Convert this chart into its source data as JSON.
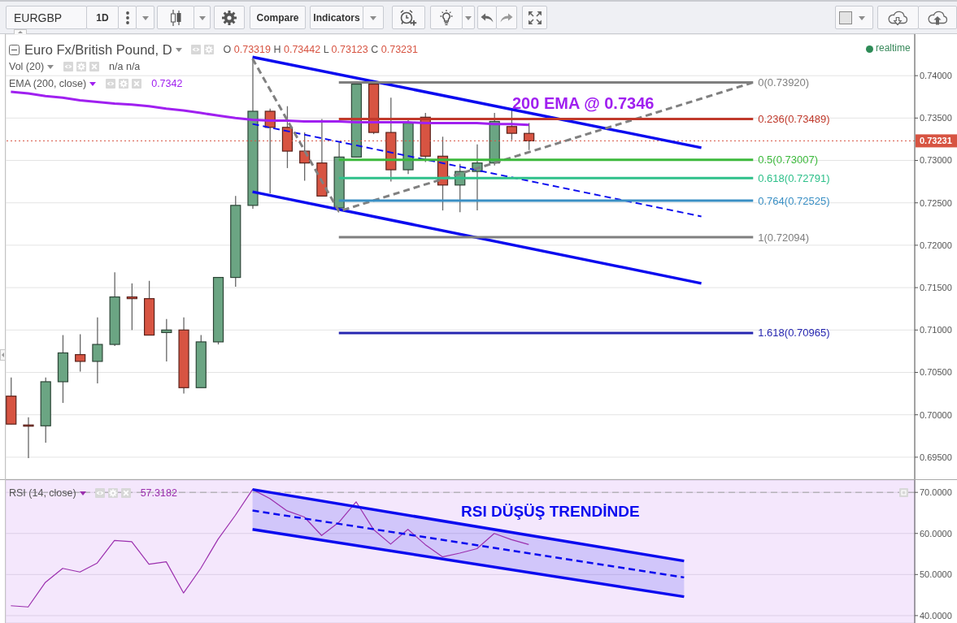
{
  "chart_data": [
    {
      "type": "other",
      "annotations": [
        "EURGBP",
        "1D",
        "Compare",
        "Indicators"
      ]
    },
    {
      "type": "candlestick",
      "title": "Euro Fx/British Pound, D",
      "categories": [
        null,
        null,
        null,
        null,
        null,
        null,
        null,
        null,
        null,
        null,
        null,
        null,
        null,
        null,
        null,
        null,
        null,
        null,
        null,
        null,
        null,
        null,
        null,
        null,
        null,
        null,
        null,
        null,
        null,
        null,
        null,
        null,
        null,
        null,
        null,
        null,
        null,
        null,
        null,
        null,
        null,
        null,
        null,
        null,
        null,
        null,
        null,
        null,
        null,
        null,
        null,
        null,
        null
      ],
      "ohlc": [
        [
          0.7022,
          0.7044,
          0.6989,
          0.6989
        ],
        [
          0.6988,
          0.6997,
          0.6949,
          0.6987
        ],
        [
          0.6987,
          0.7044,
          0.6967,
          0.7039
        ],
        [
          0.7039,
          0.7094,
          0.7014,
          0.7073
        ],
        [
          0.7071,
          0.7095,
          0.7051,
          0.7063
        ],
        [
          0.7063,
          0.7115,
          0.7037,
          0.7083
        ],
        [
          0.7083,
          0.7168,
          0.7081,
          0.7139
        ],
        [
          0.7139,
          0.7155,
          0.71,
          0.7137
        ],
        [
          0.7137,
          0.7158,
          0.7094,
          0.7094
        ],
        [
          0.7097,
          0.7113,
          0.7063,
          0.71
        ],
        [
          0.71,
          0.7115,
          0.7025,
          0.7032
        ],
        [
          0.7032,
          0.7094,
          0.7032,
          0.7086
        ],
        [
          0.7086,
          0.7162,
          0.7083,
          0.7162
        ],
        [
          0.7162,
          0.7258,
          0.7151,
          0.7247
        ],
        [
          0.7247,
          0.742,
          0.7243,
          0.7358
        ],
        [
          0.7358,
          0.7361,
          0.7261,
          0.7339
        ],
        [
          0.7339,
          0.7364,
          0.7291,
          0.7311
        ],
        [
          0.7311,
          0.7333,
          0.7276,
          0.7297
        ],
        [
          0.7297,
          0.7349,
          0.7258,
          0.7258
        ],
        [
          0.7244,
          0.7321,
          0.7242,
          0.7304
        ],
        [
          0.7304,
          0.7392,
          0.7304,
          0.739
        ],
        [
          0.739,
          0.7392,
          0.7331,
          0.7333
        ],
        [
          0.7333,
          0.7374,
          0.7275,
          0.7289
        ],
        [
          0.7289,
          0.7349,
          0.7284,
          0.7344
        ],
        [
          0.7351,
          0.7356,
          0.7298,
          0.7305
        ],
        [
          0.7305,
          0.7328,
          0.7241,
          0.7271
        ],
        [
          0.7271,
          0.7296,
          0.7239,
          0.7287
        ],
        [
          0.7287,
          0.7319,
          0.7241,
          0.7297
        ],
        [
          0.7297,
          0.7356,
          0.7294,
          0.7346
        ],
        [
          0.734,
          0.7359,
          0.7324,
          0.7332
        ],
        [
          0.73319,
          0.73442,
          0.73123,
          0.73231
        ],
        null,
        null,
        null,
        null,
        null,
        null,
        null,
        null,
        null,
        null,
        null,
        null,
        null,
        null,
        null,
        null,
        null,
        null,
        null,
        null,
        null,
        null
      ],
      "colors": [
        "#d75442",
        "#d75442",
        "#6ba583",
        "#6ba583",
        "#d75442",
        "#6ba583",
        "#6ba583",
        "#d75442",
        "#d75442",
        "#6ba583",
        "#d75442",
        "#6ba583",
        "#6ba583",
        "#6ba583",
        "#6ba583",
        "#d75442",
        "#d75442",
        "#d75442",
        "#d75442",
        "#6ba583",
        "#6ba583",
        "#d75442",
        "#d75442",
        "#6ba583",
        "#d75442",
        "#d75442",
        "#6ba583",
        "#6ba583",
        "#6ba583",
        "#d75442",
        "#d75442",
        null,
        null,
        null,
        null,
        null,
        null,
        null,
        null,
        null,
        null,
        null,
        null,
        null,
        null,
        null,
        null,
        null,
        null,
        null,
        null,
        null,
        null
      ],
      "series": [
        {
          "name": "EMA (200, close)",
          "type": "line",
          "color": "#a020f0",
          "values": [
            0.7381,
            0.7379,
            0.7376,
            0.7374,
            0.7371,
            0.7369,
            0.7367,
            0.7366,
            0.7364,
            0.7361,
            0.7359,
            0.7356,
            0.7353,
            0.735,
            0.7348,
            0.7347,
            0.7347,
            0.7346,
            0.7346,
            0.7346,
            0.7345,
            0.7345,
            0.7345,
            0.7345,
            0.7344,
            0.7344,
            0.7344,
            0.7344,
            0.7343,
            0.7343,
            0.7342,
            null,
            null,
            null,
            null,
            null,
            null,
            null,
            null,
            null,
            null,
            null,
            null,
            null,
            null,
            null,
            null,
            null,
            null,
            null,
            null,
            null,
            null
          ]
        },
        {
          "type": "line",
          "color": "#0b0bef",
          "values": [
            null,
            null,
            null,
            null,
            null,
            null,
            null,
            null,
            null,
            null,
            null,
            null,
            null,
            null,
            0.7422,
            null,
            null,
            null,
            null,
            null,
            null,
            null,
            null,
            null,
            null,
            null,
            null,
            null,
            null,
            null,
            null,
            null,
            null,
            null,
            null,
            null,
            null,
            null,
            null,
            null,
            0.7315,
            null,
            null,
            null,
            null,
            null,
            null,
            null,
            null,
            null,
            null,
            null,
            null
          ]
        },
        {
          "type": "line",
          "color": "#0b0bef",
          "values": [
            null,
            null,
            null,
            null,
            null,
            null,
            null,
            null,
            null,
            null,
            null,
            null,
            null,
            null,
            0.7263,
            null,
            null,
            null,
            null,
            null,
            null,
            null,
            null,
            null,
            null,
            null,
            null,
            null,
            null,
            null,
            null,
            null,
            null,
            null,
            null,
            null,
            null,
            null,
            null,
            null,
            0.7155,
            null,
            null,
            null,
            null,
            null,
            null,
            null,
            null,
            null,
            null,
            null,
            null
          ]
        },
        {
          "type": "line",
          "color": "#0b0bef",
          "line_style": "dashed",
          "values": [
            null,
            null,
            null,
            null,
            null,
            null,
            null,
            null,
            null,
            null,
            null,
            null,
            null,
            null,
            0.7343,
            null,
            null,
            null,
            null,
            null,
            null,
            null,
            null,
            null,
            null,
            null,
            null,
            null,
            null,
            null,
            null,
            null,
            null,
            null,
            null,
            null,
            null,
            null,
            null,
            null,
            0.7234,
            null,
            null,
            null,
            null,
            null,
            null,
            null,
            null,
            null,
            null,
            null,
            null
          ]
        },
        {
          "type": "line",
          "color": "#808080",
          "line_style": "dashed",
          "values": [
            null,
            null,
            null,
            null,
            null,
            null,
            null,
            null,
            null,
            null,
            null,
            null,
            null,
            null,
            0.742,
            null,
            null,
            null,
            null,
            0.724,
            null,
            null,
            null,
            null,
            null,
            null,
            null,
            null,
            null,
            null,
            null,
            null,
            null,
            null,
            null,
            null,
            null,
            null,
            null,
            null,
            null,
            null,
            null,
            0.7392,
            null,
            null,
            null,
            null,
            null,
            null,
            null,
            null,
            null
          ]
        },
        {
          "name": "0(0.73920)",
          "type": "line",
          "color": "#7f7f7f",
          "values": [
            null,
            null,
            null,
            null,
            null,
            null,
            null,
            null,
            null,
            null,
            null,
            null,
            null,
            null,
            null,
            null,
            null,
            null,
            null,
            0.7392,
            null,
            null,
            null,
            null,
            null,
            null,
            null,
            null,
            null,
            null,
            null,
            null,
            null,
            null,
            null,
            null,
            null,
            null,
            null,
            null,
            null,
            null,
            null,
            0.7392,
            null,
            null,
            null,
            null,
            null,
            null,
            null,
            null,
            null
          ]
        },
        {
          "name": "0.236(0.73489)",
          "type": "line",
          "color": "#c0392b",
          "values": [
            null,
            null,
            null,
            null,
            null,
            null,
            null,
            null,
            null,
            null,
            null,
            null,
            null,
            null,
            null,
            null,
            null,
            null,
            null,
            0.73489,
            null,
            null,
            null,
            null,
            null,
            null,
            null,
            null,
            null,
            null,
            null,
            null,
            null,
            null,
            null,
            null,
            null,
            null,
            null,
            null,
            null,
            null,
            null,
            0.73489,
            null,
            null,
            null,
            null,
            null,
            null,
            null,
            null,
            null
          ]
        },
        {
          "name": "0.5(0.73007)",
          "type": "line",
          "color": "#3cb93c",
          "values": [
            null,
            null,
            null,
            null,
            null,
            null,
            null,
            null,
            null,
            null,
            null,
            null,
            null,
            null,
            null,
            null,
            null,
            null,
            null,
            0.73007,
            null,
            null,
            null,
            null,
            null,
            null,
            null,
            null,
            null,
            null,
            null,
            null,
            null,
            null,
            null,
            null,
            null,
            null,
            null,
            null,
            null,
            null,
            null,
            0.73007,
            null,
            null,
            null,
            null,
            null,
            null,
            null,
            null,
            null
          ]
        },
        {
          "name": "0.618(0.72791)",
          "type": "line",
          "color": "#2ec08a",
          "values": [
            null,
            null,
            null,
            null,
            null,
            null,
            null,
            null,
            null,
            null,
            null,
            null,
            null,
            null,
            null,
            null,
            null,
            null,
            null,
            0.72791,
            null,
            null,
            null,
            null,
            null,
            null,
            null,
            null,
            null,
            null,
            null,
            null,
            null,
            null,
            null,
            null,
            null,
            null,
            null,
            null,
            null,
            null,
            null,
            0.72791,
            null,
            null,
            null,
            null,
            null,
            null,
            null,
            null,
            null
          ]
        },
        {
          "name": "0.764(0.72525)",
          "type": "line",
          "color": "#3a8fc4",
          "values": [
            null,
            null,
            null,
            null,
            null,
            null,
            null,
            null,
            null,
            null,
            null,
            null,
            null,
            null,
            null,
            null,
            null,
            null,
            null,
            0.72525,
            null,
            null,
            null,
            null,
            null,
            null,
            null,
            null,
            null,
            null,
            null,
            null,
            null,
            null,
            null,
            null,
            null,
            null,
            null,
            null,
            null,
            null,
            null,
            0.72525,
            null,
            null,
            null,
            null,
            null,
            null,
            null,
            null,
            null
          ]
        },
        {
          "name": "1(0.72094)",
          "type": "line",
          "color": "#7f7f7f",
          "values": [
            null,
            null,
            null,
            null,
            null,
            null,
            null,
            null,
            null,
            null,
            null,
            null,
            null,
            null,
            null,
            null,
            null,
            null,
            null,
            0.72094,
            null,
            null,
            null,
            null,
            null,
            null,
            null,
            null,
            null,
            null,
            null,
            null,
            null,
            null,
            null,
            null,
            null,
            null,
            null,
            null,
            null,
            null,
            null,
            0.72094,
            null,
            null,
            null,
            null,
            null,
            null,
            null,
            null,
            null
          ]
        },
        {
          "name": "1.618(0.70965)",
          "type": "line",
          "color": "#2626b0",
          "values": [
            null,
            null,
            null,
            null,
            null,
            null,
            null,
            null,
            null,
            null,
            null,
            null,
            null,
            null,
            null,
            null,
            null,
            null,
            null,
            0.70965,
            null,
            null,
            null,
            null,
            null,
            null,
            null,
            null,
            null,
            null,
            null,
            null,
            null,
            null,
            null,
            null,
            null,
            null,
            null,
            null,
            null,
            null,
            null,
            0.70965,
            null,
            null,
            null,
            null,
            null,
            null,
            null,
            null,
            null
          ]
        }
      ],
      "ylim": [
        0.6924,
        0.7449
      ],
      "yticks": [
        {
          "value": 0.695,
          "label": "0.69500"
        },
        {
          "value": 0.7,
          "label": "0.70000"
        },
        {
          "value": 0.705,
          "label": "0.70500"
        },
        {
          "value": 0.71,
          "label": "0.71000"
        },
        {
          "value": 0.715,
          "label": "0.71500"
        },
        {
          "value": 0.72,
          "label": "0.72000"
        },
        {
          "value": 0.725,
          "label": "0.72500"
        },
        {
          "value": 0.73,
          "label": "0.73000"
        },
        {
          "value": 0.735,
          "label": "0.73500"
        },
        {
          "value": 0.74,
          "label": "0.74000"
        }
      ],
      "tick_labels": "y",
      "grid": true,
      "legend": "top left",
      "ref_lines": [
        {
          "axis": "y",
          "value": 0.73231,
          "label": "0.73231",
          "color": "#d75442",
          "line_style": "dotted"
        }
      ],
      "annotations": [
        "O 0.73319 H 0.73442 L 0.73123 C 0.73231",
        "Vol (20)",
        "n/a n/a",
        "0.7342",
        "realtime",
        "200 EMA @ 0.7346"
      ]
    },
    {
      "type": "line",
      "categories": [
        null,
        null,
        null,
        null,
        null,
        null,
        null,
        null,
        null,
        null,
        null,
        null,
        null,
        null,
        null,
        null,
        null,
        null,
        null,
        null,
        null,
        null,
        null,
        null,
        null,
        null,
        null,
        null,
        null,
        null,
        null,
        null,
        null,
        null,
        null,
        null,
        null,
        null,
        null,
        null,
        null,
        null,
        null,
        null,
        null,
        null,
        null,
        null,
        null,
        null,
        null,
        null,
        null
      ],
      "series": [
        {
          "name": "RSI (14, close)",
          "color": "#9b2fae",
          "values": [
            42.4,
            42.1,
            48.1,
            51.5,
            50.6,
            52.8,
            58.3,
            58,
            52.5,
            53.1,
            45.5,
            51.5,
            58.6,
            64.4,
            70.7,
            68.5,
            65.5,
            64,
            59.5,
            62.7,
            67.7,
            61,
            57.4,
            61,
            57.3,
            54.3,
            55.2,
            56.3,
            60,
            58.5,
            57.3182,
            null,
            null,
            null,
            null,
            null,
            null,
            null,
            null,
            null,
            null,
            null,
            null,
            null,
            null,
            null,
            null,
            null,
            null,
            null,
            null,
            null,
            null
          ]
        },
        {
          "color": "#0b0bef",
          "values": [
            null,
            null,
            null,
            null,
            null,
            null,
            null,
            null,
            null,
            null,
            null,
            null,
            null,
            null,
            70.7,
            null,
            null,
            null,
            null,
            null,
            null,
            null,
            null,
            null,
            null,
            null,
            null,
            null,
            null,
            null,
            null,
            null,
            null,
            null,
            null,
            null,
            null,
            null,
            null,
            53.3,
            null,
            null,
            null,
            null,
            null,
            null,
            null,
            null,
            null,
            null,
            null,
            null,
            null
          ]
        },
        {
          "color": "#0b0bef",
          "values": [
            null,
            null,
            null,
            null,
            null,
            null,
            null,
            null,
            null,
            null,
            null,
            null,
            null,
            null,
            61,
            null,
            null,
            null,
            null,
            null,
            null,
            null,
            null,
            null,
            null,
            null,
            null,
            null,
            null,
            null,
            null,
            null,
            null,
            null,
            null,
            null,
            null,
            null,
            null,
            44.6,
            null,
            null,
            null,
            null,
            null,
            null,
            null,
            null,
            null,
            null,
            null,
            null,
            null
          ]
        },
        {
          "color": "#0b0bef",
          "line_style": "dashed",
          "values": [
            null,
            null,
            null,
            null,
            null,
            null,
            null,
            null,
            null,
            null,
            null,
            null,
            null,
            null,
            65.6,
            null,
            null,
            null,
            null,
            null,
            null,
            null,
            null,
            null,
            null,
            null,
            null,
            null,
            null,
            null,
            null,
            null,
            null,
            null,
            null,
            null,
            null,
            null,
            null,
            49.3,
            null,
            null,
            null,
            null,
            null,
            null,
            null,
            null,
            null,
            null,
            null,
            null,
            null
          ],
          "lower": [
            null,
            null,
            null,
            null,
            null,
            null,
            null,
            null,
            null,
            null,
            null,
            null,
            null,
            null,
            61,
            null,
            null,
            null,
            null,
            null,
            null,
            null,
            null,
            null,
            null,
            null,
            null,
            null,
            null,
            null,
            null,
            null,
            null,
            null,
            null,
            null,
            null,
            null,
            null,
            44.6,
            null,
            null,
            null,
            null,
            null,
            null,
            null,
            null,
            null,
            null,
            null,
            null,
            null
          ],
          "upper": [
            null,
            null,
            null,
            null,
            null,
            null,
            null,
            null,
            null,
            null,
            null,
            null,
            null,
            null,
            70.7,
            null,
            null,
            null,
            null,
            null,
            null,
            null,
            null,
            null,
            null,
            null,
            null,
            null,
            null,
            null,
            null,
            null,
            null,
            null,
            null,
            null,
            null,
            null,
            null,
            53.3,
            null,
            null,
            null,
            null,
            null,
            null,
            null,
            null,
            null,
            null,
            null,
            null,
            null
          ]
        }
      ],
      "ylim": [
        38.2,
        73
      ],
      "yticks": [
        {
          "value": 40,
          "label": "40.0000"
        },
        {
          "value": 50,
          "label": "50.0000"
        },
        {
          "value": 60,
          "label": "60.0000"
        },
        {
          "value": 70,
          "label": "70.0000"
        }
      ],
      "tick_labels": "y",
      "grid": true,
      "legend": "top left",
      "ref_lines": [
        {
          "axis": "y",
          "value": 70,
          "color": "#a0a0a0",
          "line_style": "dashed"
        }
      ],
      "annotations": [
        "57.3182",
        "RSI DÜŞÜŞ TRENDİNDE"
      ]
    }
  ]
}
